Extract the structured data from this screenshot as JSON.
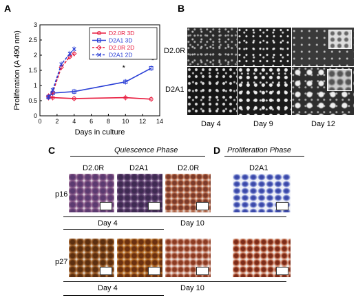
{
  "panels": {
    "A": "A",
    "B": "B",
    "C": "C",
    "D": "D"
  },
  "chart_data": {
    "type": "line",
    "xlabel": "Days in culture",
    "ylabel": "Proliferation (A 490 nm)",
    "xlim": [
      0,
      14
    ],
    "ylim": [
      0,
      3
    ],
    "xticks": [
      0,
      2,
      4,
      6,
      8,
      10,
      12,
      14
    ],
    "yticks": [
      0,
      0.5,
      1,
      1.5,
      2,
      2.5,
      3
    ],
    "xtick_labels": [
      "0",
      "2",
      "4",
      "6",
      "8",
      "10",
      "12",
      "14"
    ],
    "ytick_labels": [
      "0",
      "0.5",
      "1",
      "1.5",
      "2",
      "2.5",
      "3"
    ],
    "legend_position": "top-right",
    "series": [
      {
        "name": "D2.0R 3D",
        "color": "#e8193c",
        "dash": false,
        "marker": "circle",
        "x": [
          1,
          1.5,
          4,
          10,
          13
        ],
        "y": [
          0.6,
          0.6,
          0.57,
          0.6,
          0.55
        ]
      },
      {
        "name": "D2A1 3D",
        "color": "#2a3fd6",
        "dash": false,
        "marker": "square",
        "x": [
          1,
          1.5,
          4,
          10,
          13
        ],
        "y": [
          0.62,
          0.75,
          0.8,
          1.12,
          1.57
        ]
      },
      {
        "name": "D2.0R 2D",
        "color": "#e8193c",
        "dash": true,
        "marker": "diamond",
        "x": [
          1,
          1.5,
          2.5,
          3.5,
          4
        ],
        "y": [
          0.65,
          0.78,
          1.6,
          1.95,
          2.05
        ]
      },
      {
        "name": "D2A1 2D",
        "color": "#2a3fd6",
        "dash": true,
        "marker": "x",
        "x": [
          1,
          1.5,
          2.5,
          3.5,
          4
        ],
        "y": [
          0.62,
          0.85,
          1.7,
          2.05,
          2.2
        ]
      }
    ],
    "annotations": [
      {
        "text": "*",
        "x": 9.8,
        "y": 1.5
      },
      {
        "text": "*",
        "x": 13.2,
        "y": 1.75
      }
    ]
  },
  "panel_b": {
    "rows": [
      "D2.0R",
      "D2A1"
    ],
    "cols": [
      "Day 4",
      "Day 9",
      "Day 12"
    ]
  },
  "panel_c": {
    "phase": "Quiescence Phase",
    "headers": [
      "D2.0R",
      "D2A1",
      "D2.0R"
    ],
    "markers": [
      "p16",
      "p27"
    ],
    "day_left": "Day 4",
    "day_right": "Day 10"
  },
  "panel_d": {
    "phase": "Proliferation Phase",
    "header": "D2A1"
  }
}
